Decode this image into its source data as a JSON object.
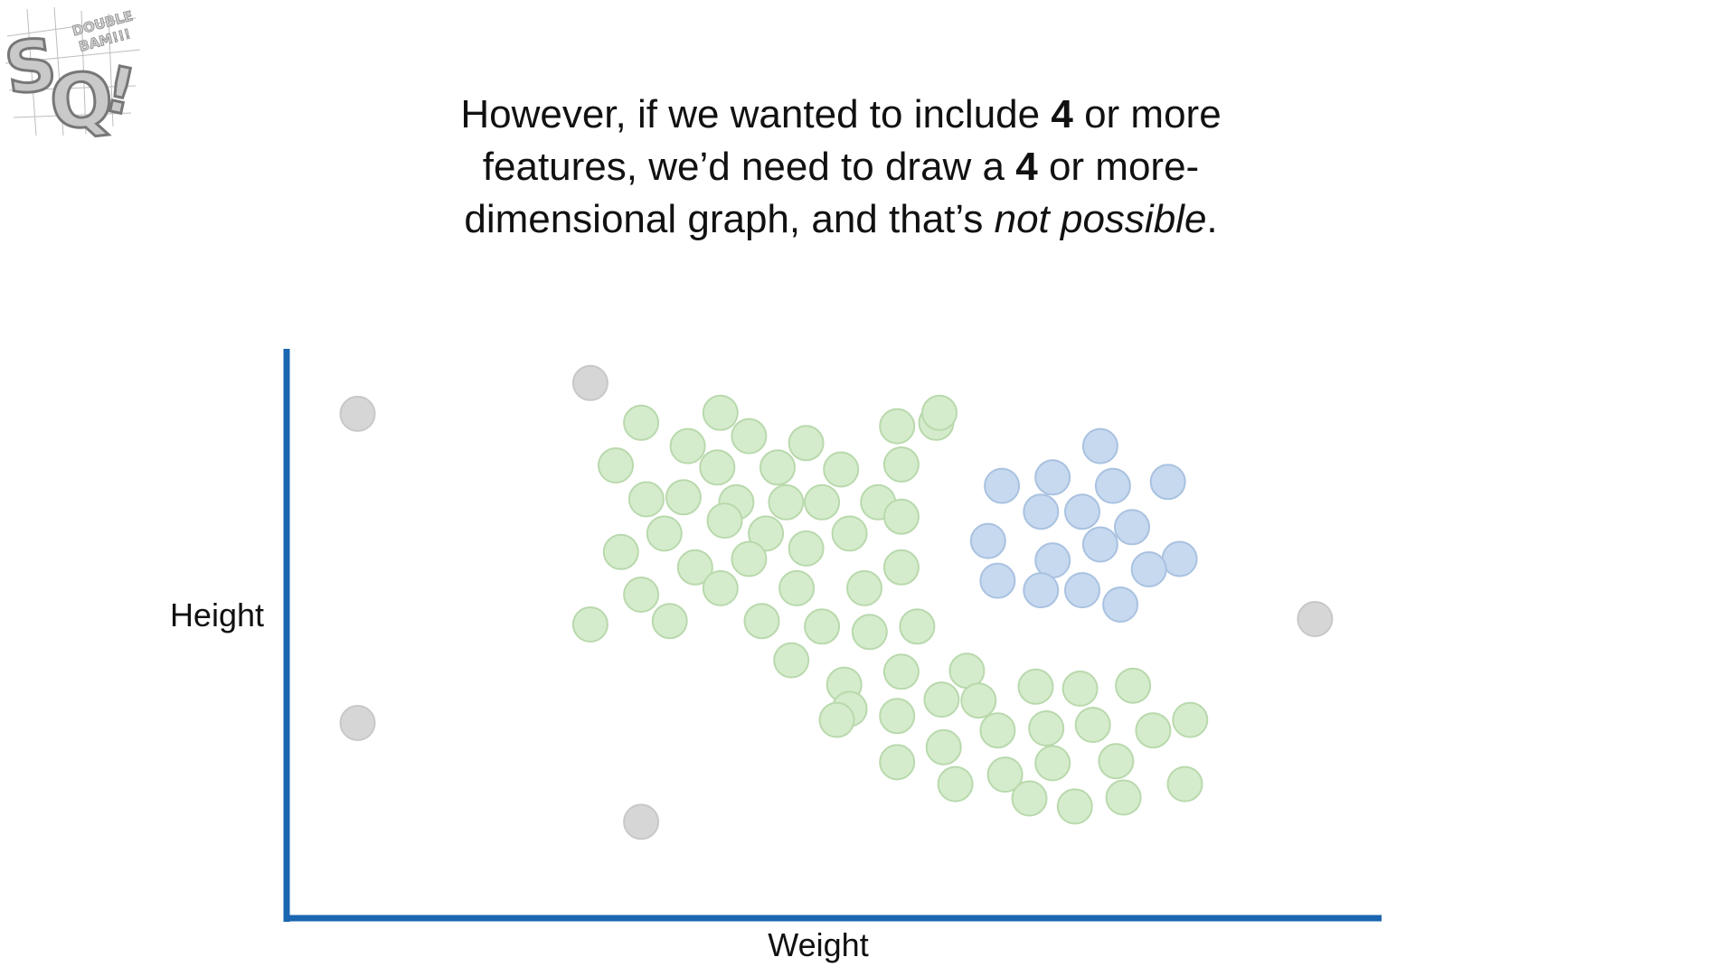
{
  "logo": {
    "letters": "SQ!",
    "tag": "DOUBLE BAM!!!"
  },
  "headline": {
    "line1_a": "However, if we wanted to include ",
    "line1_b": "4",
    "line1_c": " or more",
    "line2_a": "features, we’d need to draw a ",
    "line2_b": "4",
    "line2_c": " or more-",
    "line3_a": "dimensional graph, and that’s ",
    "line3_b": "not possible",
    "line3_c": "."
  },
  "chart_data": {
    "type": "scatter",
    "title": "",
    "xlabel": "Weight",
    "ylabel": "Height",
    "xlim": [
      0,
      100
    ],
    "ylim": [
      0,
      100
    ],
    "grid": false,
    "legend": "none",
    "axis_color": "#1a66b0",
    "series": [
      {
        "color": "#d6d6d6",
        "stroke": "#c8c8c8",
        "points": [
          [
            5.6,
            91.3
          ],
          [
            27.6,
            97.5
          ],
          [
            5.6,
            29.1
          ],
          [
            32.4,
            9.2
          ],
          [
            96.1,
            50.0
          ]
        ]
      },
      {
        "color": "#d5eccc",
        "stroke": "#b9d9ad",
        "points": [
          [
            32.4,
            89.5
          ],
          [
            39.9,
            91.5
          ],
          [
            60.3,
            89.5
          ],
          [
            56.6,
            88.8
          ],
          [
            60.6,
            91.5
          ],
          [
            36.8,
            84.8
          ],
          [
            42.6,
            86.8
          ],
          [
            48.0,
            85.4
          ],
          [
            30.0,
            80.9
          ],
          [
            39.6,
            80.5
          ],
          [
            45.3,
            80.5
          ],
          [
            51.3,
            80.1
          ],
          [
            57.0,
            81.1
          ],
          [
            36.4,
            74.5
          ],
          [
            32.9,
            74.1
          ],
          [
            41.4,
            73.5
          ],
          [
            46.1,
            73.5
          ],
          [
            49.5,
            73.5
          ],
          [
            54.8,
            73.5
          ],
          [
            40.3,
            69.8
          ],
          [
            44.2,
            67.2
          ],
          [
            52.1,
            67.2
          ],
          [
            57.0,
            70.6
          ],
          [
            30.5,
            63.5
          ],
          [
            34.6,
            67.2
          ],
          [
            42.6,
            62.1
          ],
          [
            48.0,
            64.2
          ],
          [
            57.0,
            60.4
          ],
          [
            37.5,
            60.4
          ],
          [
            32.4,
            54.9
          ],
          [
            39.9,
            56.2
          ],
          [
            47.1,
            56.2
          ],
          [
            53.5,
            56.2
          ],
          [
            27.6,
            48.9
          ],
          [
            35.1,
            49.6
          ],
          [
            43.8,
            49.6
          ],
          [
            49.5,
            48.5
          ],
          [
            54.0,
            47.4
          ],
          [
            58.5,
            48.5
          ],
          [
            46.6,
            41.7
          ],
          [
            51.6,
            36.8
          ],
          [
            57.0,
            39.4
          ],
          [
            63.2,
            39.6
          ],
          [
            52.1,
            31.9
          ],
          [
            56.6,
            30.5
          ],
          [
            60.8,
            33.8
          ],
          [
            64.3,
            33.6
          ],
          [
            69.7,
            36.4
          ],
          [
            73.9,
            36.0
          ],
          [
            78.9,
            36.6
          ],
          [
            50.9,
            29.7
          ],
          [
            61.0,
            24.2
          ],
          [
            66.1,
            27.6
          ],
          [
            70.7,
            28.0
          ],
          [
            75.1,
            28.7
          ],
          [
            80.8,
            27.6
          ],
          [
            84.3,
            29.7
          ],
          [
            56.6,
            21.2
          ],
          [
            62.1,
            16.8
          ],
          [
            66.8,
            18.7
          ],
          [
            71.3,
            21.0
          ],
          [
            77.3,
            21.4
          ],
          [
            83.8,
            16.8
          ],
          [
            69.1,
            13.9
          ],
          [
            73.4,
            12.3
          ],
          [
            78.0,
            14.1
          ]
        ]
      },
      {
        "color": "#c7d9ef",
        "stroke": "#a9c2e0",
        "points": [
          [
            75.8,
            84.8
          ],
          [
            66.5,
            76.8
          ],
          [
            71.3,
            78.5
          ],
          [
            77.0,
            76.8
          ],
          [
            82.2,
            77.6
          ],
          [
            70.2,
            71.6
          ],
          [
            74.1,
            71.6
          ],
          [
            78.8,
            68.5
          ],
          [
            65.2,
            65.7
          ],
          [
            75.8,
            65.0
          ],
          [
            71.3,
            61.8
          ],
          [
            83.3,
            62.1
          ],
          [
            80.4,
            60.0
          ],
          [
            66.1,
            57.7
          ],
          [
            70.2,
            55.8
          ],
          [
            74.1,
            55.8
          ],
          [
            77.7,
            52.9
          ]
        ]
      }
    ]
  }
}
